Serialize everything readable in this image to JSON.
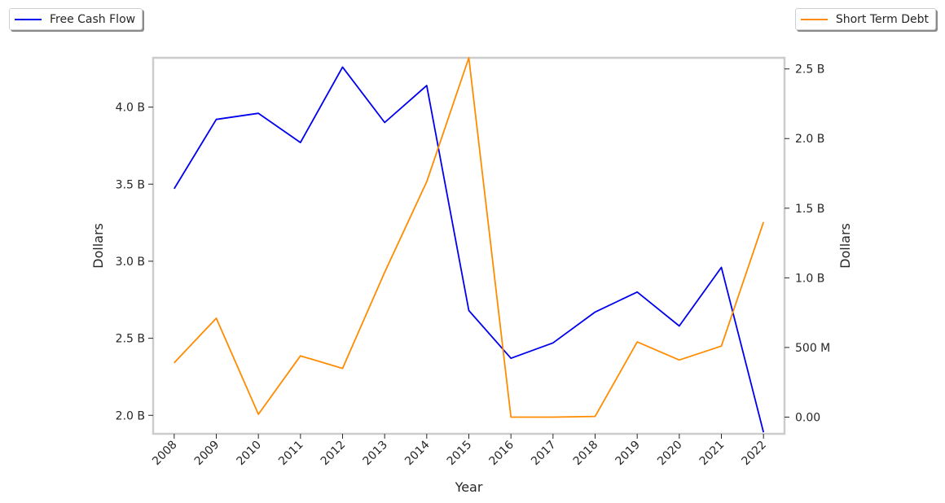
{
  "chart_data": {
    "type": "line",
    "xlabel": "Year",
    "ylabel_left": "Dollars",
    "ylabel_right": "Dollars",
    "categories": [
      "2008",
      "2009",
      "2010",
      "2011",
      "2012",
      "2013",
      "2014",
      "2015",
      "2016",
      "2017",
      "2018",
      "2019",
      "2020",
      "2021",
      "2022"
    ],
    "left_axis": {
      "range": [
        1.88,
        4.32
      ],
      "ticks": [
        2.0,
        2.5,
        3.0,
        3.5,
        4.0
      ],
      "tick_labels": [
        "2.0 B",
        "2.5 B",
        "3.0 B",
        "3.5 B",
        "4.0 B"
      ]
    },
    "right_axis": {
      "range": [
        -0.12,
        2.58
      ],
      "ticks": [
        0,
        0.5,
        1.0,
        1.5,
        2.0,
        2.5
      ],
      "tick_labels": [
        "0.00",
        "500 M",
        "1.0 B",
        "1.5 B",
        "2.0 B",
        "2.5 B"
      ]
    },
    "series": [
      {
        "name": "Free Cash Flow",
        "axis": "left",
        "color": "#0000ee",
        "values": [
          3.47,
          3.92,
          3.96,
          3.77,
          4.26,
          3.9,
          4.14,
          2.68,
          2.37,
          2.47,
          2.67,
          2.8,
          2.58,
          2.96,
          1.89
        ]
      },
      {
        "name": "Short Term Debt",
        "axis": "right",
        "color": "#ff8c00",
        "values": [
          0.39,
          0.71,
          0.02,
          0.44,
          0.35,
          1.04,
          1.69,
          2.58,
          0.0,
          0.0,
          0.005,
          0.54,
          0.41,
          0.51,
          1.4
        ]
      }
    ],
    "grid": false,
    "legend_placement": [
      "top-left",
      "top-right"
    ]
  }
}
